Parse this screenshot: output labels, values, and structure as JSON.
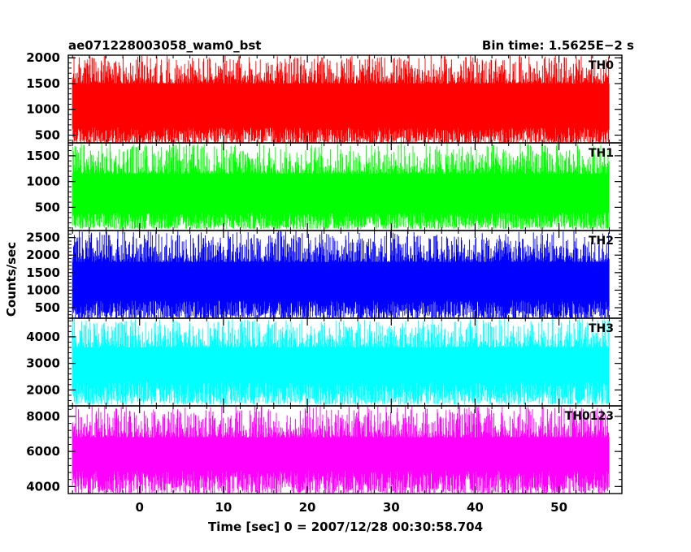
{
  "chart_data": {
    "type": "line",
    "title": "ae071228003058_wam0_bst",
    "subtitle": "Bin time: 1.5625E−2 s",
    "xlabel": "Time [sec] 0 = 2007/12/28 00:30:58.704",
    "ylabel": "Counts/sec",
    "xlim": [
      -8.5,
      57.5
    ],
    "x_ticks": [
      0,
      10,
      20,
      30,
      40,
      50
    ],
    "x_range": [
      -8,
      56
    ],
    "grid": false,
    "panels": [
      {
        "name": "TH0",
        "color": "#ff0000",
        "ylim": [
          350,
          2050
        ],
        "y_ticks": [
          500,
          1000,
          1500,
          2000
        ],
        "low": [
          330,
          650
        ],
        "high": [
          1500,
          2050
        ]
      },
      {
        "name": "TH1",
        "color": "#00ff00",
        "ylim": [
          50,
          1750
        ],
        "y_ticks": [
          500,
          1000,
          1500
        ],
        "low": [
          80,
          400
        ],
        "high": [
          1150,
          1750
        ]
      },
      {
        "name": "TH2",
        "color": "#0000ff",
        "ylim": [
          200,
          2700
        ],
        "y_ticks": [
          500,
          1000,
          1500,
          2000,
          2500
        ],
        "low": [
          180,
          700
        ],
        "high": [
          1800,
          2700
        ]
      },
      {
        "name": "TH3",
        "color": "#00ffff",
        "ylim": [
          1400,
          4700
        ],
        "y_ticks": [
          2000,
          3000,
          4000
        ],
        "low": [
          1450,
          2300
        ],
        "high": [
          3600,
          4700
        ]
      },
      {
        "name": "TH0123",
        "color": "#ff00ff",
        "ylim": [
          3600,
          8600
        ],
        "y_ticks": [
          4000,
          6000,
          8000
        ],
        "low": [
          3600,
          4900
        ],
        "high": [
          6800,
          8600
        ]
      }
    ]
  }
}
